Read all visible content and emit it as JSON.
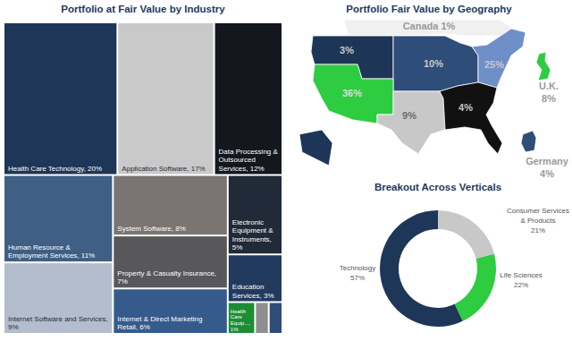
{
  "chart_data": [
    {
      "type": "treemap",
      "title": "Portfolio at Fair Value by Industry",
      "categories": [
        "Health Care Technology, 20%",
        "Application Software, 17%",
        "Data Processing & Outsourced Services, 12%",
        "Human Resource & Employment Services, 11%",
        "Internet Software and Services, 9%",
        "System Software, 8%",
        "Property & Casualty Insurance, 7%",
        "Internet & Direct Marketing Retail, 6%",
        "Electronic Equipment & Instruments, 5%",
        "Education Services, 3%",
        "Health Care Equip..., 1%",
        null,
        null
      ],
      "values": [
        20,
        17,
        12,
        11,
        9,
        8,
        7,
        6,
        5,
        3,
        1,
        0.5,
        0.5
      ],
      "colors": [
        "#1e3658",
        "#c9c9c9",
        "#14181e",
        "#3f5f84",
        "#b3bdcd",
        "#7a7572",
        "#58575a",
        "#355b8c",
        "#202a38",
        "#223a5e",
        "#1b8e33",
        "#8f8f8f",
        "#2e4d78"
      ]
    },
    {
      "type": "map",
      "title": "Portfolio Fair Value by Geography",
      "values": [
        1,
        3,
        10,
        25,
        36,
        9,
        4,
        8,
        4
      ],
      "value_labels": [
        "Canada 1%",
        "3%",
        "10%",
        "25%",
        "36%",
        "9%",
        "4%",
        "U.K. 8%",
        "Germany 4%"
      ],
      "colors": [
        "#f0f0f0",
        "#1d3557",
        "#2e4d78",
        "#6f8fc8",
        "#2ecc40",
        "#c8c8c8",
        "#111111",
        "#2ecc40",
        "#2e4d78"
      ]
    },
    {
      "type": "donut",
      "title": "Breakout Across Verticals",
      "categories": [
        "Consumer Services & Products",
        "Life Sciences",
        "Technology"
      ],
      "values": [
        21,
        22,
        57
      ],
      "value_labels": [
        "21%",
        "22%",
        "57%"
      ],
      "colors": [
        "#c8c8c8",
        "#2ecc40",
        "#1e3658"
      ]
    }
  ]
}
